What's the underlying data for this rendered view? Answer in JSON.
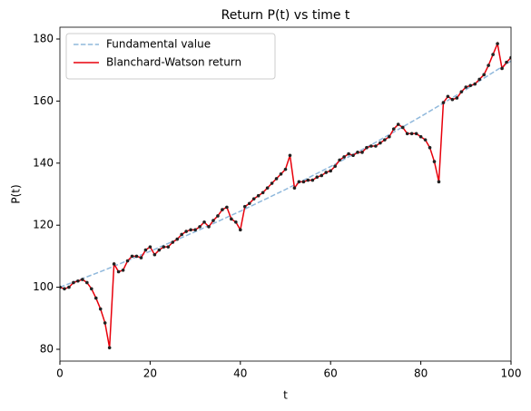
{
  "chart_data": {
    "type": "line",
    "title": "Return P(t) vs time t",
    "xlabel": "t",
    "ylabel": "P(t)",
    "xlim": [
      0,
      100
    ],
    "ylim": [
      76.2,
      183.8
    ],
    "xticks": [
      0,
      20,
      40,
      60,
      80,
      100
    ],
    "yticks": [
      80,
      100,
      120,
      140,
      160,
      180
    ],
    "legend": "upper left",
    "series": [
      {
        "name": "Fundamental value",
        "color": "#8fb8dc",
        "dashed": true,
        "x": [
          0,
          10,
          20,
          30,
          40,
          50,
          60,
          70,
          80,
          90,
          100
        ],
        "values": [
          100,
          105.6,
          111.6,
          117.9,
          124.5,
          131.5,
          138.9,
          146.7,
          155.0,
          163.7,
          172.9
        ]
      },
      {
        "name": "Blanchard-Watson return",
        "color": "#e8000b",
        "markers": true,
        "x": [
          0,
          1,
          2,
          3,
          4,
          5,
          6,
          7,
          8,
          9,
          10,
          11,
          12,
          13,
          14,
          15,
          16,
          17,
          18,
          19,
          20,
          21,
          22,
          23,
          24,
          25,
          26,
          27,
          28,
          29,
          30,
          31,
          32,
          33,
          34,
          35,
          36,
          37,
          38,
          39,
          40,
          41,
          42,
          43,
          44,
          45,
          46,
          47,
          48,
          49,
          50,
          51,
          52,
          53,
          54,
          55,
          56,
          57,
          58,
          59,
          60,
          61,
          62,
          63,
          64,
          65,
          66,
          67,
          68,
          69,
          70,
          71,
          72,
          73,
          74,
          75,
          76,
          77,
          78,
          79,
          80,
          81,
          82,
          83,
          84,
          85,
          86,
          87,
          88,
          89,
          90,
          91,
          92,
          93,
          94,
          95,
          96,
          97,
          98,
          99,
          100
        ],
        "values": [
          100,
          99.5,
          100,
          101.5,
          102,
          102.5,
          101.5,
          99.5,
          96.5,
          93,
          88.5,
          80.5,
          107.5,
          105,
          105.5,
          108.5,
          110,
          110,
          109.5,
          112,
          113,
          110.5,
          112,
          113,
          113,
          114.5,
          115.5,
          117,
          118,
          118.5,
          118.5,
          119.5,
          121,
          119.5,
          121.5,
          123,
          125,
          125.8,
          122,
          121,
          118.5,
          126,
          127,
          128.5,
          129.5,
          130.5,
          132,
          133.5,
          135,
          136.5,
          138,
          142.5,
          132,
          134,
          134,
          134.5,
          134.5,
          135.5,
          136,
          137,
          137.5,
          139,
          141,
          142,
          143,
          142.5,
          143.5,
          143.5,
          145,
          145.5,
          145.5,
          146.5,
          147.5,
          148.5,
          151,
          152.5,
          151.5,
          149.5,
          149.5,
          149.5,
          148.5,
          147.5,
          145,
          140.5,
          134,
          159.5,
          161.5,
          160.5,
          161,
          163,
          164.5,
          165,
          165.5,
          167,
          168.5,
          171.5,
          175,
          178.5,
          170.5,
          172.5,
          174
        ]
      }
    ]
  }
}
